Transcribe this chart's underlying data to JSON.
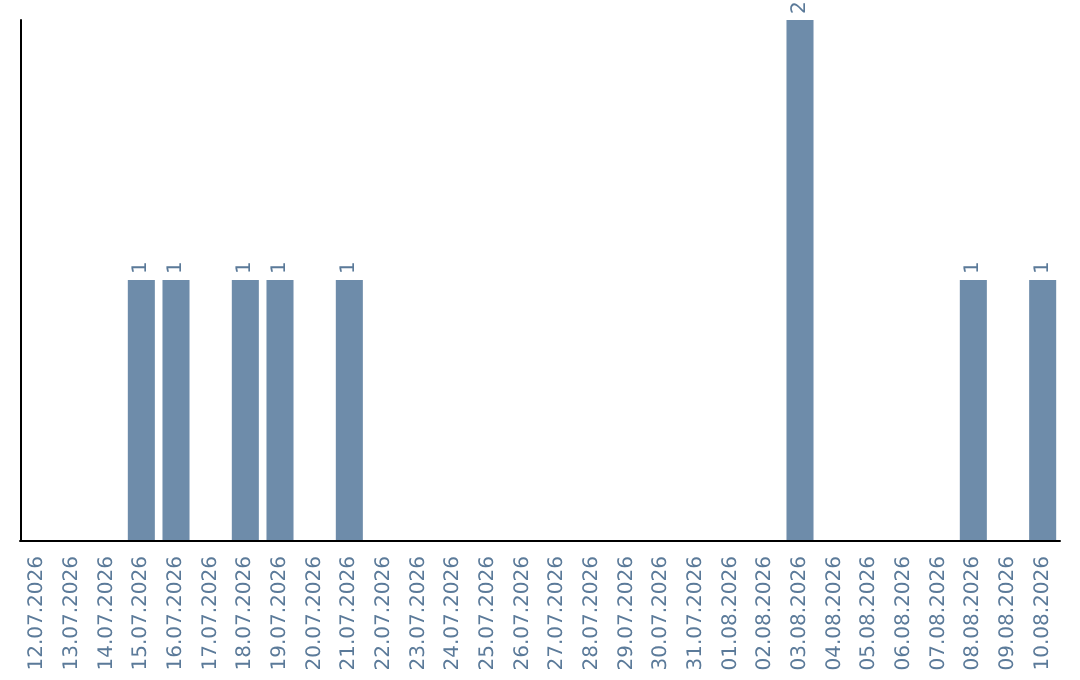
{
  "chart_data": {
    "type": "bar",
    "categories": [
      "12.07.2026",
      "13.07.2026",
      "14.07.2026",
      "15.07.2026",
      "16.07.2026",
      "17.07.2026",
      "18.07.2026",
      "19.07.2026",
      "20.07.2026",
      "21.07.2026",
      "22.07.2026",
      "23.07.2026",
      "24.07.2026",
      "25.07.2026",
      "26.07.2026",
      "27.07.2026",
      "28.07.2026",
      "29.07.2026",
      "30.07.2026",
      "31.07.2026",
      "01.08.2026",
      "02.08.2026",
      "03.08.2026",
      "04.08.2026",
      "05.08.2026",
      "06.08.2026",
      "07.08.2026",
      "08.08.2026",
      "09.08.2026",
      "10.08.2026"
    ],
    "values": [
      0,
      0,
      0,
      1,
      1,
      0,
      1,
      1,
      0,
      1,
      0,
      0,
      0,
      0,
      0,
      0,
      0,
      0,
      0,
      0,
      0,
      0,
      2,
      0,
      0,
      0,
      0,
      1,
      0,
      1
    ],
    "value_labels": [
      null,
      null,
      null,
      "1",
      "1",
      null,
      "1",
      "1",
      null,
      "1",
      null,
      null,
      null,
      null,
      null,
      null,
      null,
      null,
      null,
      null,
      null,
      null,
      "2",
      null,
      null,
      null,
      null,
      "1",
      null,
      "1"
    ],
    "color": "#6e8caa",
    "tick_labels": "x",
    "grid": false
  }
}
